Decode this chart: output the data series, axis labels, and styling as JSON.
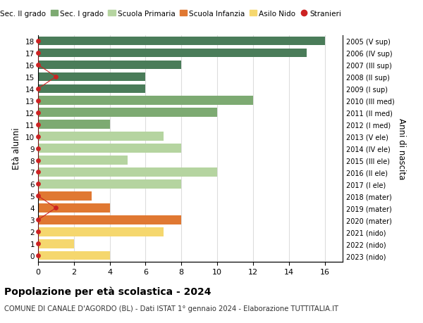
{
  "ages": [
    18,
    17,
    16,
    15,
    14,
    13,
    12,
    11,
    10,
    9,
    8,
    7,
    6,
    5,
    4,
    3,
    2,
    1,
    0
  ],
  "right_labels": [
    "2005 (V sup)",
    "2006 (IV sup)",
    "2007 (III sup)",
    "2008 (II sup)",
    "2009 (I sup)",
    "2010 (III med)",
    "2011 (II med)",
    "2012 (I med)",
    "2013 (V ele)",
    "2014 (IV ele)",
    "2015 (III ele)",
    "2016 (II ele)",
    "2017 (I ele)",
    "2018 (mater)",
    "2019 (mater)",
    "2020 (mater)",
    "2021 (nido)",
    "2022 (nido)",
    "2023 (nido)"
  ],
  "bar_values": [
    16,
    15,
    8,
    6,
    6,
    12,
    10,
    4,
    7,
    8,
    5,
    10,
    8,
    3,
    4,
    8,
    7,
    2,
    4
  ],
  "bar_colors": [
    "#4a7c59",
    "#4a7c59",
    "#4a7c59",
    "#4a7c59",
    "#4a7c59",
    "#7daa72",
    "#7daa72",
    "#7daa72",
    "#b5d4a0",
    "#b5d4a0",
    "#b5d4a0",
    "#b5d4a0",
    "#b5d4a0",
    "#e07832",
    "#e07832",
    "#e07832",
    "#f5d76e",
    "#f5d76e",
    "#f5d76e"
  ],
  "stranieri_dot_x": [
    0,
    0,
    0,
    1,
    0,
    0,
    0,
    0,
    0,
    0,
    0,
    0,
    0,
    0,
    1,
    0,
    0,
    0,
    0
  ],
  "legend_labels": [
    "Sec. II grado",
    "Sec. I grado",
    "Scuola Primaria",
    "Scuola Infanzia",
    "Asilo Nido",
    "Stranieri"
  ],
  "legend_colors": [
    "#4a7c59",
    "#7daa72",
    "#b5d4a0",
    "#e07832",
    "#f5d76e",
    "#cc2222"
  ],
  "ylabel": "Età alunni",
  "right_ylabel": "Anni di nascita",
  "title": "Popolazione per età scolastica - 2024",
  "subtitle": "COMUNE DI CANALE D'AGORDO (BL) - Dati ISTAT 1° gennaio 2024 - Elaborazione TUTTITALIA.IT",
  "xlim": [
    0,
    17
  ],
  "xticks": [
    0,
    2,
    4,
    6,
    8,
    10,
    12,
    14,
    16
  ],
  "bg_color": "#ffffff",
  "grid_color": "#dddddd",
  "stranieri_color": "#cc2222"
}
